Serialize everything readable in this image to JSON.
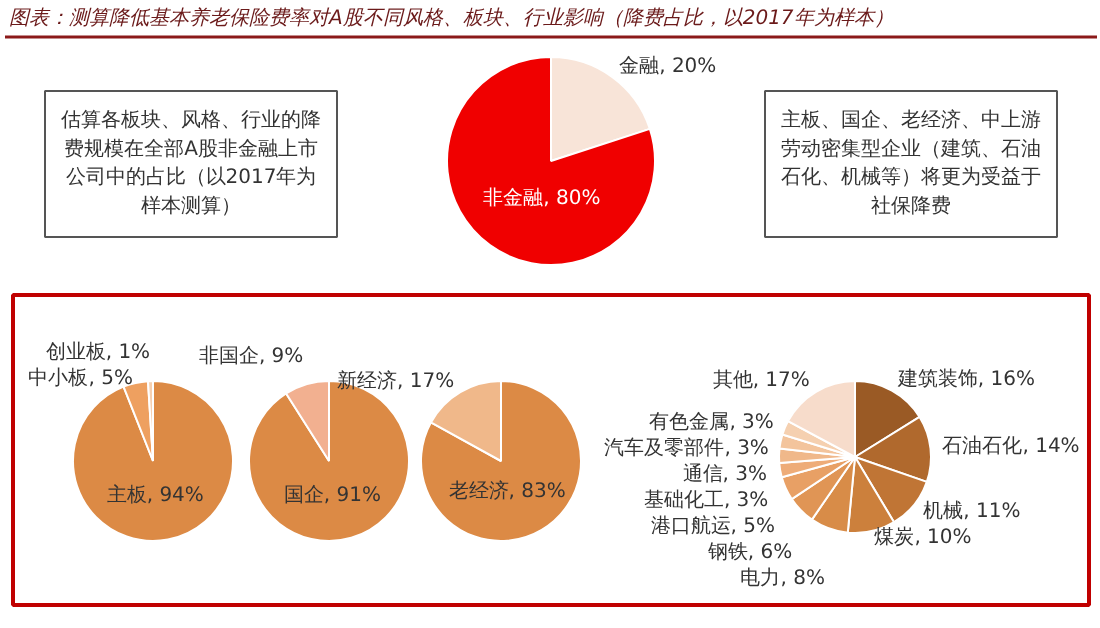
{
  "chart_data": [
    {
      "type": "pie",
      "title": "图表：测算降低基本养老保险费率对A股不同风格、板块、行业影响（降费占比，以2017年为样本）",
      "categories": [
        "金融",
        "非金融"
      ],
      "values": [
        20,
        80
      ],
      "colors": [
        "#f8e4d8",
        "#f00000"
      ],
      "value_labels": [
        "20%",
        "80%"
      ],
      "annotations": [
        "估算各板块、风格、行业的降费规模在全部A股非金融上市公司中的占比（以2017年为样本测算）",
        "主板、国企、老经济、中上游劳动密集型企业（建筑、石油石化、机械等）将更为受益于社保降费"
      ]
    },
    {
      "type": "pie",
      "categories": [
        "主板",
        "中小板",
        "创业板"
      ],
      "values": [
        94,
        5,
        1
      ],
      "colors": [
        "#dc8a45",
        "#eea060",
        "#f6d0b0"
      ],
      "value_labels": [
        "94%",
        "5%",
        "1%"
      ]
    },
    {
      "type": "pie",
      "categories": [
        "国企",
        "非国企"
      ],
      "values": [
        91,
        9
      ],
      "colors": [
        "#dc8a45",
        "#f2b090"
      ],
      "value_labels": [
        "91%",
        "9%"
      ]
    },
    {
      "type": "pie",
      "categories": [
        "老经济",
        "新经济"
      ],
      "values": [
        83,
        17
      ],
      "colors": [
        "#dc8a45",
        "#f0b88a"
      ],
      "value_labels": [
        "83%",
        "17%"
      ]
    },
    {
      "type": "pie",
      "categories": [
        "建筑装饰",
        "石油石化",
        "机械",
        "煤炭",
        "电力",
        "钢铁",
        "港口航运",
        "基础化工",
        "通信",
        "汽车及零部件",
        "有色金属",
        "其他"
      ],
      "values": [
        16,
        14,
        11,
        10,
        8,
        6,
        5,
        3,
        3,
        3,
        3,
        17
      ],
      "colors": [
        "#9a5a25",
        "#b0692d",
        "#c07535",
        "#cc803c",
        "#d88c48",
        "#e09555",
        "#e8a065",
        "#eeac78",
        "#f0b88a",
        "#f3c49c",
        "#f5d0b0",
        "#f7dccb"
      ],
      "value_labels": [
        "16%",
        "14%",
        "11%",
        "10%",
        "8%",
        "6%",
        "5%",
        "3%",
        "3%",
        "3%",
        "3%",
        "17%"
      ]
    }
  ]
}
